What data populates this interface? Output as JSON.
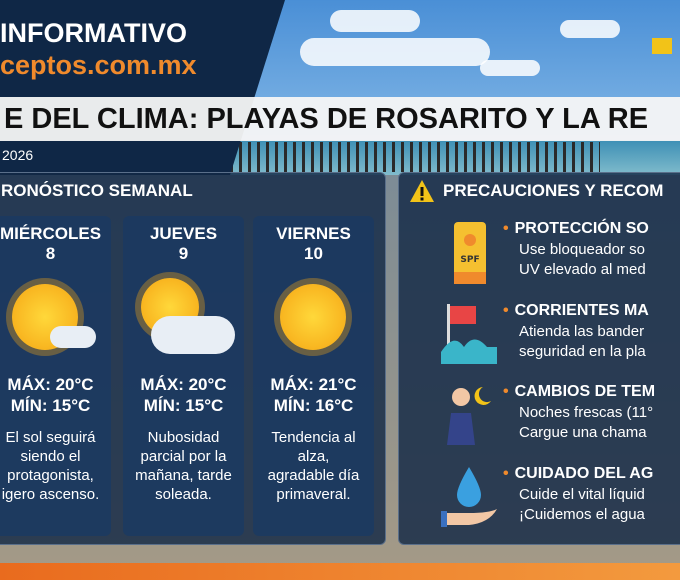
{
  "header": {
    "brand_line1": "INFORMATIVO",
    "brand_line2": "ceptos.com.mx",
    "title": "E DEL CLIMA: PLAYAS DE ROSARITO Y LA RE",
    "date": "2026"
  },
  "forecast": {
    "title": "RONÓSTICO SEMANAL",
    "days": [
      {
        "day": "MIÉRCOLES",
        "date": "8",
        "icon": "sun-small-cloud-icon",
        "max": "MÁX: 20°C",
        "min": "MÍN: 15°C",
        "desc": [
          "El sol seguirá",
          "siendo el",
          "protagonista,",
          "igero ascenso."
        ]
      },
      {
        "day": "JUEVES",
        "date": "9",
        "icon": "partly-cloudy-icon",
        "max": "MÁX: 20°C",
        "min": "MÍN: 15°C",
        "desc": [
          "Nubosidad",
          "parcial por la",
          "mañana, tarde",
          "soleada."
        ]
      },
      {
        "day": "VIERNES",
        "date": "10",
        "icon": "sun-icon",
        "max": "MÁX: 21°C",
        "min": "MÍN: 16°C",
        "desc": [
          "Tendencia al",
          "alza,",
          "agradable día",
          "primaveral."
        ]
      }
    ]
  },
  "precautions": {
    "title": "PRECAUCIONES Y RECOM",
    "items": [
      {
        "icon": "sunscreen-icon",
        "heading": "PROTECCIÓN SO",
        "lines": [
          "Use bloqueador so",
          "UV elevado al med"
        ]
      },
      {
        "icon": "warning-flag-waves-icon",
        "heading": "CORRIENTES MA",
        "lines": [
          "Atienda las bander",
          "seguridad en la pla"
        ]
      },
      {
        "icon": "person-jacket-moon-icon",
        "heading": "CAMBIOS DE TEM",
        "lines": [
          "Noches frescas (11°",
          "Cargue una chama"
        ]
      },
      {
        "icon": "water-drop-hand-icon",
        "heading": "CUIDADO DEL AG",
        "lines": [
          "Cuide el vital líquid",
          "¡Cuidemos el agua"
        ]
      }
    ]
  },
  "colors": {
    "navy": "#0f2746",
    "orange": "#f08a2c",
    "flag": "#f2c318"
  }
}
